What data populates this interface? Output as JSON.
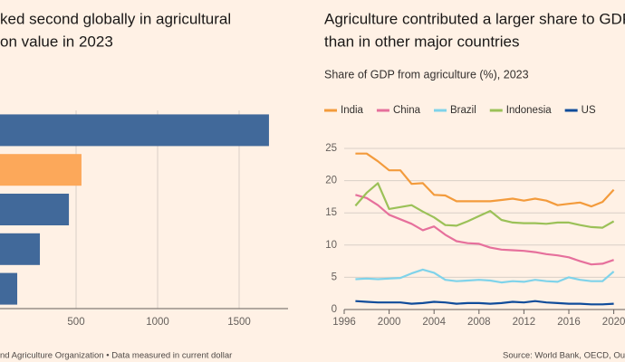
{
  "chart_data": [
    {
      "type": "barh",
      "title": [
        "ked second globally in agricultural",
        "on value in 2023"
      ],
      "categories": [
        null,
        null,
        null,
        null,
        null
      ],
      "values": [
        1683,
        533,
        456,
        278,
        139
      ],
      "colors": [
        "#41699a",
        "#fca85a",
        "#41699a",
        "#41699a",
        "#41699a"
      ],
      "xlim": [
        0,
        1800
      ],
      "xticks": [
        500,
        1000,
        1500
      ],
      "grid": true,
      "source": "nd Agriculture Organization • Data measured in current dollar"
    },
    {
      "type": "line",
      "title": [
        "Agriculture contributed a larger share to GDP",
        "than in other major countries"
      ],
      "subtitle": "Share of GDP from agriculture (%), 2023",
      "x": [
        1997,
        1998,
        1999,
        2000,
        2001,
        2002,
        2003,
        2004,
        2005,
        2006,
        2007,
        2008,
        2009,
        2010,
        2011,
        2012,
        2013,
        2014,
        2015,
        2016,
        2017,
        2018,
        2019,
        2020
      ],
      "series": [
        {
          "name": "India",
          "color": "#f39b3c",
          "values": [
            24.2,
            24.2,
            23,
            21.6,
            21.6,
            19.5,
            19.6,
            17.8,
            17.7,
            16.8,
            16.8,
            16.8,
            16.8,
            17,
            17.2,
            16.9,
            17.2,
            16.9,
            16.2,
            16.4,
            16.6,
            16,
            16.7,
            18.6
          ]
        },
        {
          "name": "China",
          "color": "#e6709c",
          "values": [
            17.8,
            17.3,
            16.2,
            14.7,
            14,
            13.3,
            12.3,
            12.9,
            11.6,
            10.6,
            10.3,
            10.2,
            9.6,
            9.3,
            9.2,
            9.1,
            8.9,
            8.6,
            8.4,
            8.1,
            7.5,
            7,
            7.1,
            7.7
          ]
        },
        {
          "name": "Brazil",
          "color": "#7fd3ea",
          "values": [
            4.7,
            4.8,
            4.7,
            4.8,
            4.9,
            5.6,
            6.2,
            5.7,
            4.6,
            4.4,
            4.5,
            4.6,
            4.5,
            4.2,
            4.4,
            4.3,
            4.6,
            4.4,
            4.3,
            5,
            4.6,
            4.4,
            4.4,
            5.9
          ]
        },
        {
          "name": "Indonesia",
          "color": "#9bc158",
          "values": [
            16.1,
            18.1,
            19.6,
            15.6,
            15.9,
            16.2,
            15.2,
            14.3,
            13.1,
            13,
            13.7,
            14.5,
            15.3,
            13.9,
            13.5,
            13.4,
            13.4,
            13.3,
            13.5,
            13.5,
            13.1,
            12.8,
            12.7,
            13.7
          ]
        },
        {
          "name": "US",
          "color": "#0f4c9a",
          "values": [
            1.3,
            1.2,
            1.1,
            1.1,
            1.1,
            0.9,
            1,
            1.2,
            1.1,
            0.9,
            1,
            1,
            0.9,
            1,
            1.2,
            1.1,
            1.3,
            1.1,
            1,
            0.9,
            0.9,
            0.8,
            0.8,
            0.9
          ]
        }
      ],
      "xlim": [
        1996,
        2021
      ],
      "xticks": [
        1996,
        2000,
        2004,
        2008,
        2012,
        2016,
        2020
      ],
      "ylim": [
        0,
        25
      ],
      "yticks": [
        0,
        5,
        10,
        15,
        20,
        25
      ],
      "grid": true,
      "source": "Source: World Bank, OECD, Ou"
    }
  ]
}
